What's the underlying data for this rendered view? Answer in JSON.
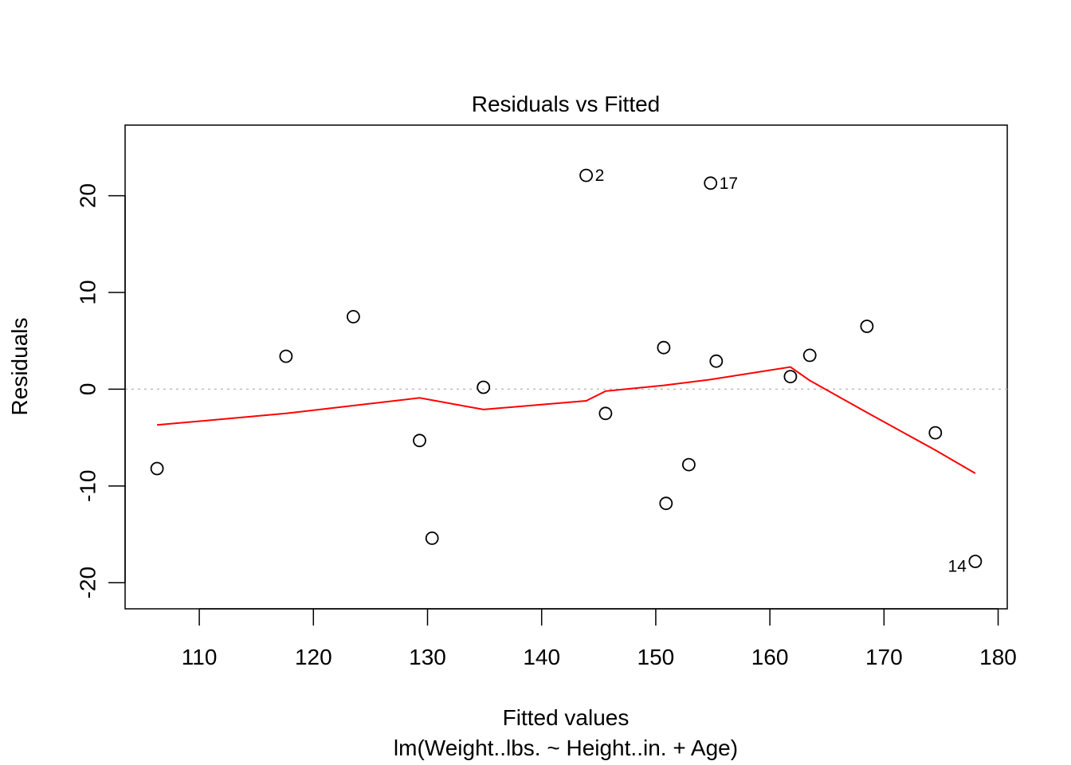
{
  "chart_data": {
    "type": "scatter",
    "title": "Residuals vs Fitted",
    "xlabel": "Fitted values",
    "subtitle": "lm(Weight..lbs. ~ Height..in. + Age)",
    "ylabel": "Residuals",
    "xlim": [
      103.5,
      180.8
    ],
    "ylim": [
      -22.7,
      27.3
    ],
    "x_ticks": [
      110,
      120,
      130,
      140,
      150,
      160,
      170,
      180
    ],
    "x_tick_labels": [
      "110",
      "120",
      "130",
      "140",
      "150",
      "160",
      "170",
      "180"
    ],
    "y_ticks": [
      -20,
      -10,
      0,
      10,
      20
    ],
    "y_tick_labels": [
      "-20",
      "-10",
      "0",
      "10",
      "20"
    ],
    "reference_line": {
      "y": 0,
      "style": "dotted",
      "color": "#bebebe"
    },
    "points": [
      {
        "x": 106.3,
        "y": -8.2
      },
      {
        "x": 117.6,
        "y": 3.4
      },
      {
        "x": 123.5,
        "y": 7.5
      },
      {
        "x": 129.3,
        "y": -5.3
      },
      {
        "x": 130.4,
        "y": -15.4
      },
      {
        "x": 134.9,
        "y": 0.2
      },
      {
        "x": 143.9,
        "y": 22.1,
        "label": "2"
      },
      {
        "x": 145.6,
        "y": -2.5
      },
      {
        "x": 150.7,
        "y": 4.3
      },
      {
        "x": 150.9,
        "y": -11.8
      },
      {
        "x": 152.9,
        "y": -7.8
      },
      {
        "x": 154.8,
        "y": 21.3,
        "label": "17"
      },
      {
        "x": 155.3,
        "y": 2.9
      },
      {
        "x": 161.8,
        "y": 1.3
      },
      {
        "x": 163.5,
        "y": 3.5
      },
      {
        "x": 168.5,
        "y": 6.5
      },
      {
        "x": 174.5,
        "y": -4.5
      },
      {
        "x": 178.0,
        "y": -17.8,
        "label": "14"
      }
    ],
    "smooth_line": {
      "color": "#ff0000",
      "points": [
        [
          106.3,
          -3.7
        ],
        [
          117.6,
          -2.5
        ],
        [
          129.3,
          -0.9
        ],
        [
          134.9,
          -2.1
        ],
        [
          143.9,
          -1.2
        ],
        [
          145.6,
          -0.2
        ],
        [
          150.7,
          0.4
        ],
        [
          154.8,
          1.0
        ],
        [
          161.8,
          2.3
        ],
        [
          163.5,
          0.9
        ],
        [
          168.5,
          -2.4
        ],
        [
          174.5,
          -6.3
        ],
        [
          178.0,
          -8.7
        ]
      ]
    }
  }
}
